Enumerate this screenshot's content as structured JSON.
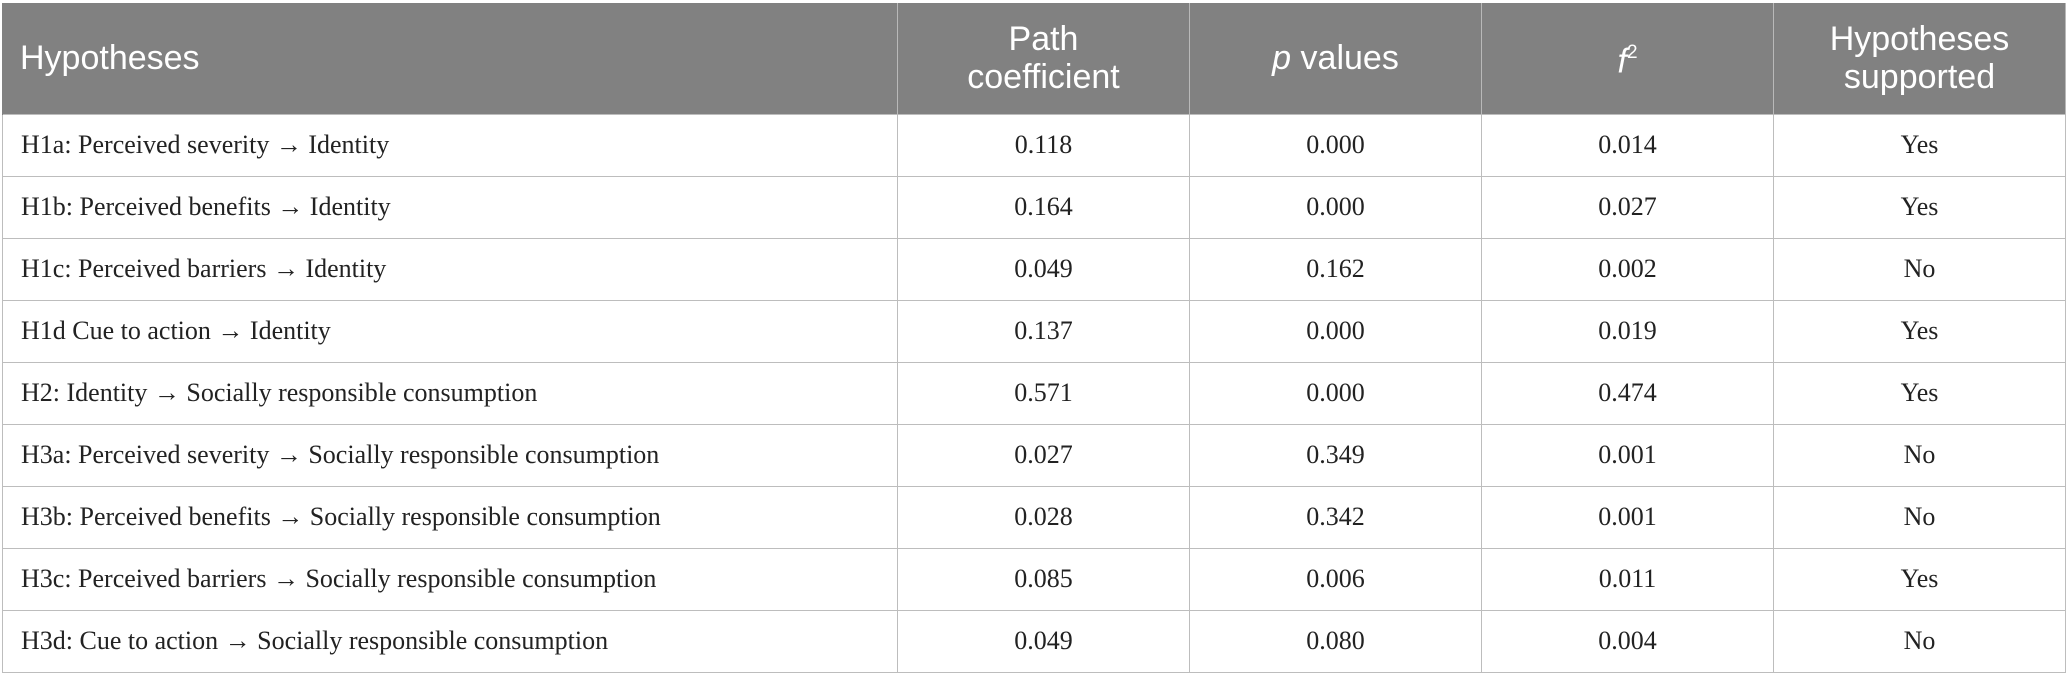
{
  "table": {
    "headers": {
      "hypotheses": "Hypotheses",
      "path_line1": "Path",
      "path_line2": "coefficient",
      "p_italic": "p",
      "p_rest": " values",
      "f_italic": "f",
      "f_sup": "2",
      "supported_line1": "Hypotheses",
      "supported_line2": "supported"
    },
    "rows": [
      {
        "hypothesis": "H1a: Perceived severity → Identity",
        "path": "0.118",
        "p": "0.000",
        "f2": "0.014",
        "supported": "Yes"
      },
      {
        "hypothesis": "H1b: Perceived benefits → Identity",
        "path": "0.164",
        "p": "0.000",
        "f2": "0.027",
        "supported": "Yes"
      },
      {
        "hypothesis": "H1c: Perceived barriers → Identity",
        "path": "0.049",
        "p": "0.162",
        "f2": "0.002",
        "supported": "No"
      },
      {
        "hypothesis": "H1d Cue to action → Identity",
        "path": "0.137",
        "p": "0.000",
        "f2": "0.019",
        "supported": "Yes"
      },
      {
        "hypothesis": "H2: Identity → Socially responsible consumption",
        "path": "0.571",
        "p": "0.000",
        "f2": "0.474",
        "supported": "Yes"
      },
      {
        "hypothesis": "H3a: Perceived severity → Socially responsible consumption",
        "path": "0.027",
        "p": "0.349",
        "f2": "0.001",
        "supported": "No"
      },
      {
        "hypothesis": "H3b: Perceived benefits → Socially responsible consumption",
        "path": "0.028",
        "p": "0.342",
        "f2": "0.001",
        "supported": "No"
      },
      {
        "hypothesis": "H3c: Perceived barriers → Socially responsible consumption",
        "path": "0.085",
        "p": "0.006",
        "f2": "0.011",
        "supported": "Yes"
      },
      {
        "hypothesis": "H3d: Cue to action → Socially responsible consumption",
        "path": "0.049",
        "p": "0.080",
        "f2": "0.004",
        "supported": "No"
      }
    ]
  },
  "colors": {
    "header_background": "#818181",
    "header_text": "#ffffff",
    "grid_lines": "#bdbdbd"
  }
}
